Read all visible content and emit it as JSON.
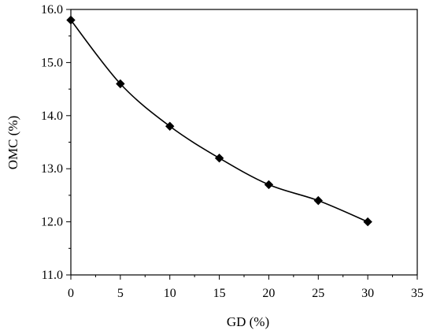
{
  "chart_data": {
    "type": "line",
    "title": "",
    "xlabel": "GD (%)",
    "ylabel": "OMC (%)",
    "xlim": [
      0,
      35
    ],
    "ylim": [
      11.0,
      16.0
    ],
    "x_ticks": [
      0,
      5,
      10,
      15,
      20,
      25,
      30,
      35
    ],
    "x_tick_labels": [
      "0",
      "5",
      "10",
      "15",
      "20",
      "25",
      "30",
      "35"
    ],
    "y_ticks": [
      11.0,
      12.0,
      13.0,
      14.0,
      15.0,
      16.0
    ],
    "y_tick_labels": [
      "11.0",
      "12.0",
      "13.0",
      "14.0",
      "15.0",
      "16.0"
    ],
    "grid": false,
    "legend": false,
    "marker": "diamond",
    "line_style": "smoothed",
    "color": "#000000",
    "series": [
      {
        "x": [
          0,
          5,
          10,
          15,
          20,
          25,
          30
        ],
        "y": [
          15.8,
          14.6,
          13.8,
          13.2,
          12.7,
          12.4,
          12.0
        ]
      }
    ]
  }
}
